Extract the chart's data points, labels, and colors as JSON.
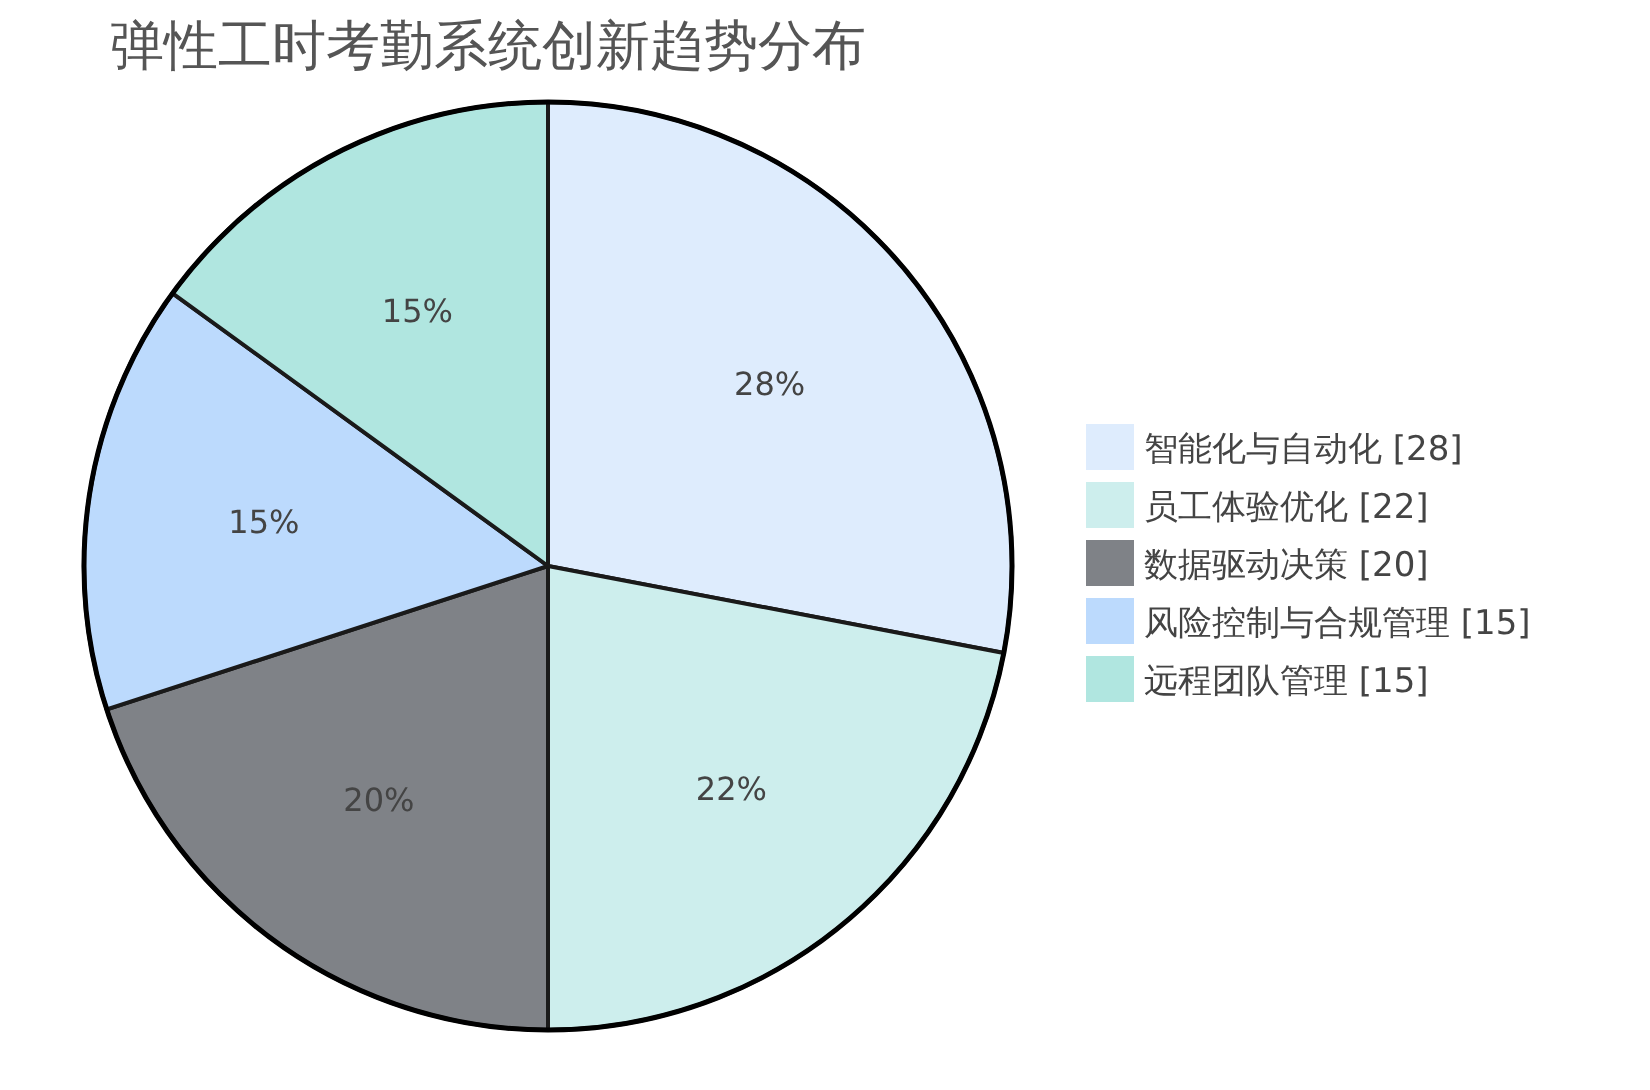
{
  "chart_data": {
    "type": "pie",
    "title": "弹性工时考勤系统创新趋势分布",
    "categories": [
      "智能化与自动化 [28]",
      "员工体验优化 [22]",
      "数据驱动决策 [20]",
      "风险控制与合规管理 [15]",
      "远程团队管理 [15]"
    ],
    "values": [
      28,
      22,
      20,
      15,
      15
    ],
    "colors": [
      "#deecfd",
      "#cdeeed",
      "#7f8287",
      "#bcdafd",
      "#b0e6e0"
    ],
    "value_labels": [
      "28%",
      "22%",
      "20%",
      "15%",
      "15%"
    ],
    "legend": "right"
  }
}
